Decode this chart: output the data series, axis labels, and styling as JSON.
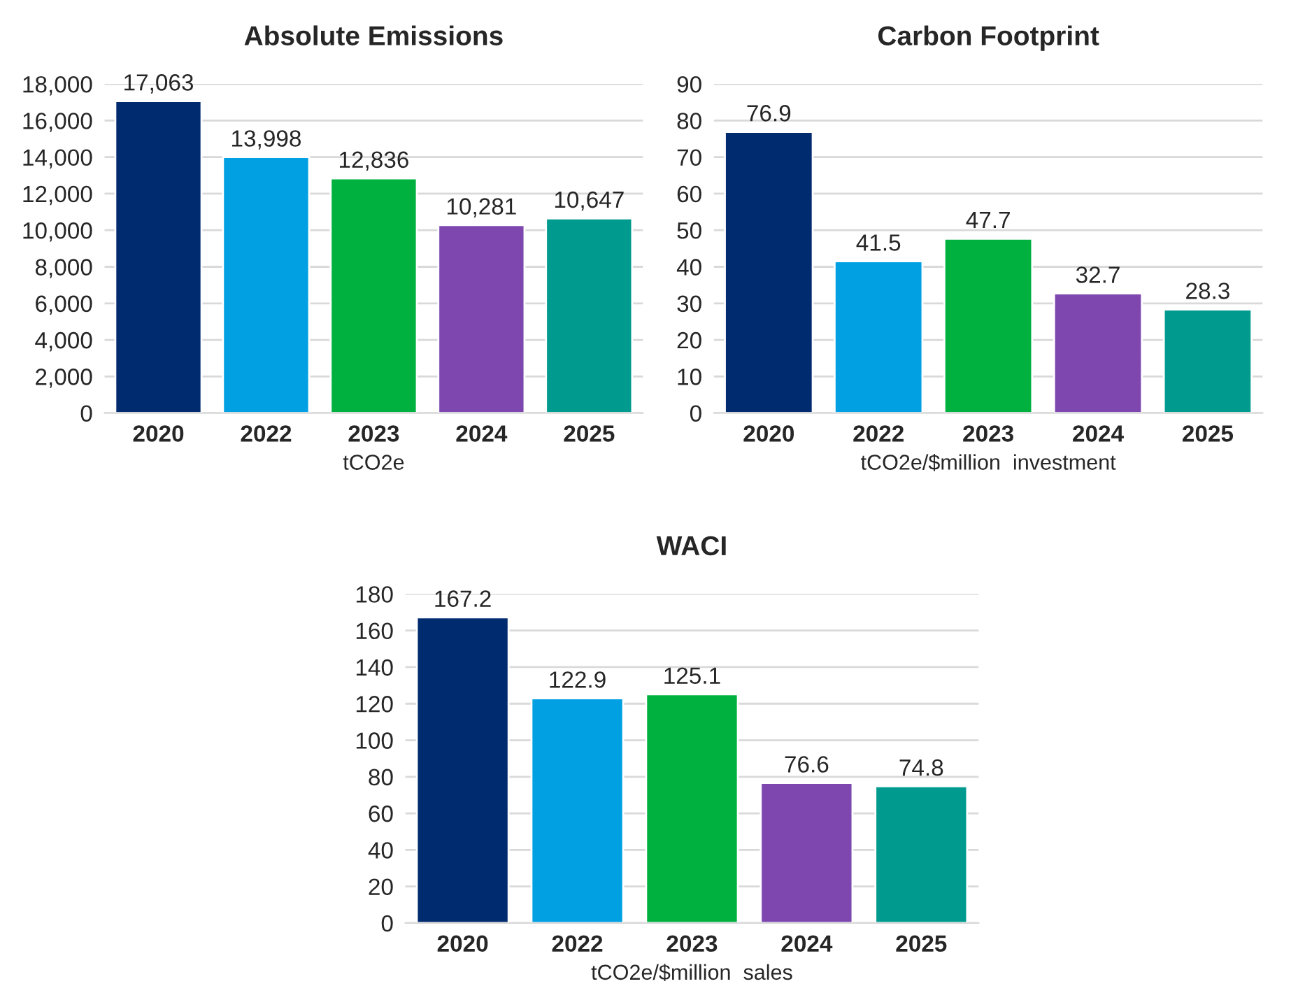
{
  "chart_data": [
    {
      "type": "bar",
      "title": "Absolute Emissions",
      "xlabel": "tCO2e",
      "categories": [
        "2020",
        "2022",
        "2023",
        "2024",
        "2025"
      ],
      "values": [
        17063,
        13998,
        12836,
        10281,
        10647
      ],
      "value_labels": [
        "17,063",
        "13,998",
        "12,836",
        "10,281",
        "10,647"
      ],
      "colors": [
        "#002b6f",
        "#00a0e3",
        "#00b140",
        "#7e47b0",
        "#009b8e"
      ],
      "ylim": [
        0,
        18000
      ],
      "yticks": [
        0,
        {
          "value": 2000,
          "label": "2,000"
        },
        {
          "value": 4000,
          "label": "4,000"
        },
        {
          "value": 6000,
          "label": "6,000"
        },
        {
          "value": 8000,
          "label": "8,000"
        },
        {
          "value": 10000,
          "label": "10,000"
        },
        {
          "value": 12000,
          "label": "12,000"
        },
        {
          "value": 14000,
          "label": "14,000"
        },
        {
          "value": 16000,
          "label": "16,000"
        },
        {
          "value": 18000,
          "label": "18,000"
        }
      ],
      "grid": "y"
    },
    {
      "type": "bar",
      "title": "Carbon Footprint",
      "xlabel": "tCO2e/$million  investment",
      "categories": [
        "2020",
        "2022",
        "2023",
        "2024",
        "2025"
      ],
      "values": [
        76.9,
        41.5,
        47.7,
        32.7,
        28.3
      ],
      "data_labels": true,
      "colors": [
        "#002b6f",
        "#00a0e3",
        "#00b140",
        "#7e47b0",
        "#009b8e"
      ],
      "ylim": [
        0,
        90
      ],
      "yticks": [
        0,
        10,
        20,
        30,
        40,
        50,
        60,
        70,
        80,
        90
      ],
      "grid": "y"
    },
    {
      "type": "bar",
      "title": "WACI",
      "xlabel": "tCO2e/$million  sales",
      "categories": [
        "2020",
        "2022",
        "2023",
        "2024",
        "2025"
      ],
      "values": [
        167.2,
        122.9,
        125.1,
        76.6,
        74.8
      ],
      "data_labels": true,
      "colors": [
        "#002b6f",
        "#00a0e3",
        "#00b140",
        "#7e47b0",
        "#009b8e"
      ],
      "ylim": [
        0,
        180
      ],
      "yticks": [
        0,
        20,
        40,
        60,
        80,
        100,
        120,
        140,
        160,
        180
      ],
      "grid": "y"
    }
  ]
}
